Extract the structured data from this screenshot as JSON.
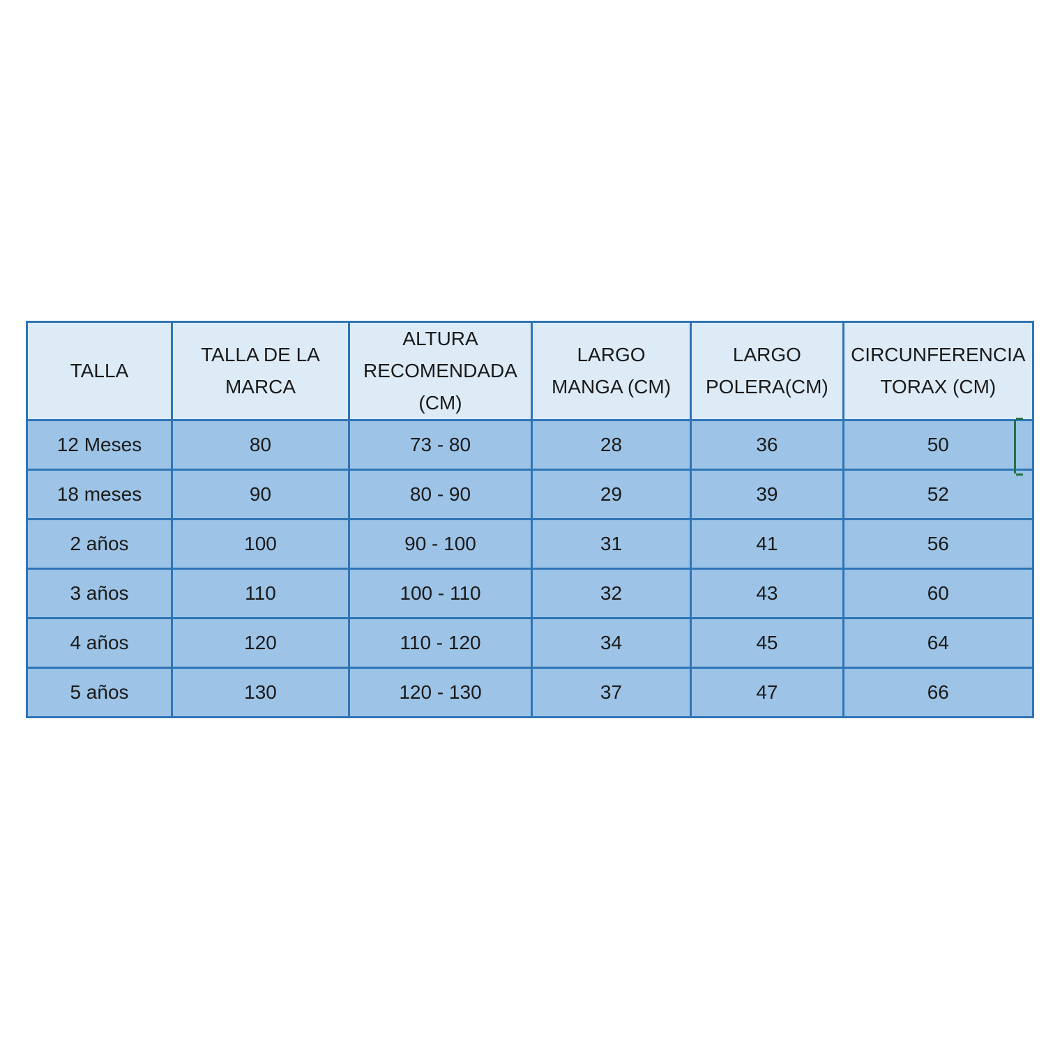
{
  "table": {
    "headers": [
      "TALLA",
      "TALLA DE LA MARCA",
      "ALTURA RECOMENDADA (CM)",
      "LARGO MANGA (CM)",
      "LARGO POLERA(CM)",
      "CIRCUNFERENCIA TORAX (CM)"
    ],
    "rows": [
      [
        "12 Meses",
        "80",
        "73 - 80",
        "28",
        "36",
        "50"
      ],
      [
        "18 meses",
        "90",
        "80 - 90",
        "29",
        "39",
        "52"
      ],
      [
        "2 años",
        "100",
        "90 - 100",
        "31",
        "41",
        "56"
      ],
      [
        "3 años",
        "110",
        "100 - 110",
        "32",
        "43",
        "60"
      ],
      [
        "4 años",
        "120",
        "110 - 120",
        "34",
        "45",
        "64"
      ],
      [
        "5 años",
        "130",
        "120 - 130",
        "37",
        "47",
        "66"
      ]
    ]
  },
  "colors": {
    "header_bg": "#ddebf7",
    "body_bg": "#9dc3e6",
    "border": "#2e75b6",
    "selection": "#217346"
  }
}
